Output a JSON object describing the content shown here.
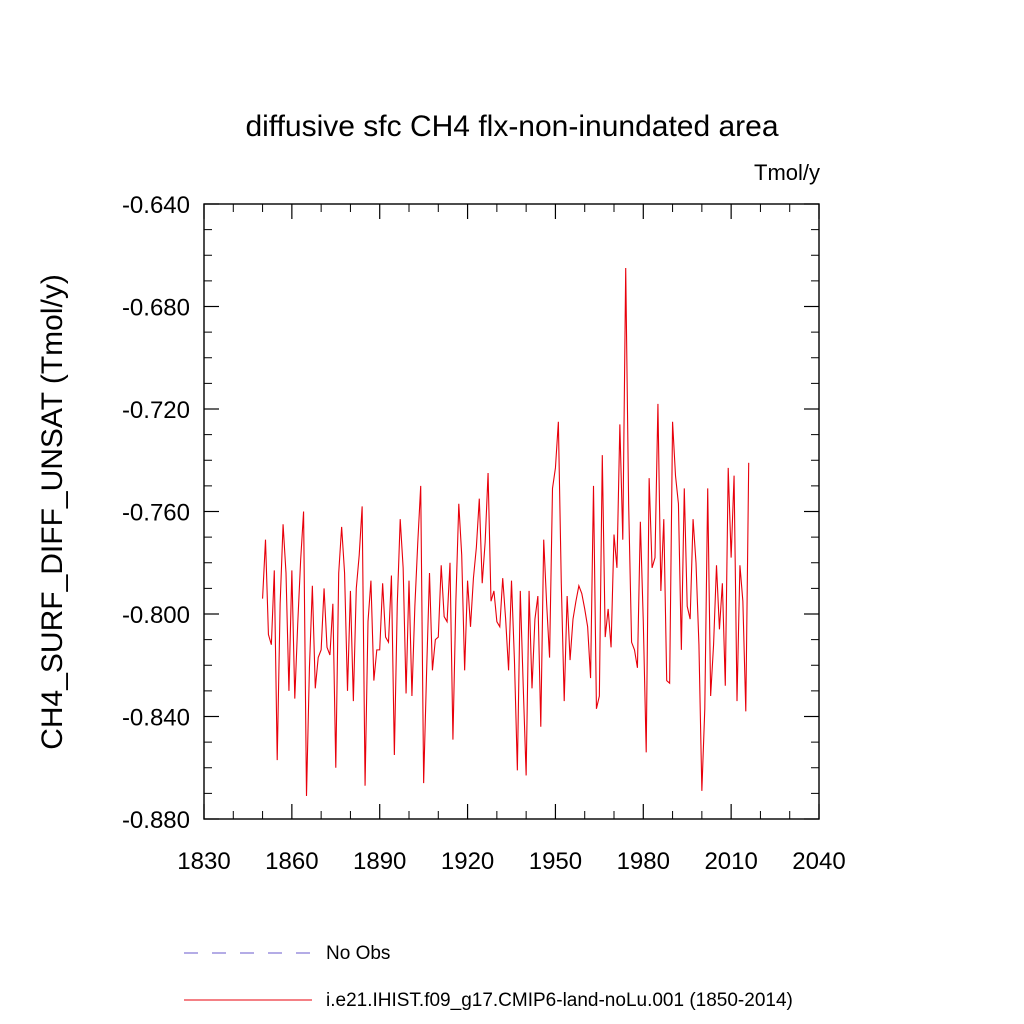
{
  "chart_data": {
    "type": "line",
    "title": "diffusive sfc CH4 flx-non-inundated area",
    "units_label": "Tmol/y",
    "ylabel": "CH4_SURF_DIFF_UNSAT  (Tmol/y)",
    "xlabel": "",
    "xlim": [
      1830,
      2040
    ],
    "ylim": [
      -0.88,
      -0.64
    ],
    "x_ticks": [
      1830,
      1860,
      1890,
      1920,
      1950,
      1980,
      2010,
      2040
    ],
    "y_ticks": [
      -0.88,
      -0.84,
      -0.8,
      -0.76,
      -0.72,
      -0.68,
      -0.64
    ],
    "y_tick_labels": [
      "-0.880",
      "-0.840",
      "-0.800",
      "-0.760",
      "-0.720",
      "-0.680",
      "-0.640"
    ],
    "grid": false,
    "legend_position": "bottom",
    "colors": {
      "series": "#e8000b",
      "obs": "#6a5acd",
      "axis": "#000000"
    },
    "legend": [
      {
        "label": "No Obs",
        "style": "dashed",
        "color": "#6a5acd"
      },
      {
        "label": "i.e21.IHIST.f09_g17.CMIP6-land-noLu.001 (1850-2014)",
        "style": "solid",
        "color": "#e8000b"
      }
    ],
    "series": [
      {
        "x_start": 1850,
        "x_end": 2014,
        "values": [
          -0.794,
          -0.771,
          -0.808,
          -0.812,
          -0.783,
          -0.857,
          -0.796,
          -0.765,
          -0.784,
          -0.83,
          -0.783,
          -0.833,
          -0.804,
          -0.779,
          -0.76,
          -0.871,
          -0.821,
          -0.789,
          -0.829,
          -0.817,
          -0.814,
          -0.79,
          -0.813,
          -0.816,
          -0.796,
          -0.86,
          -0.784,
          -0.766,
          -0.784,
          -0.83,
          -0.791,
          -0.834,
          -0.79,
          -0.777,
          -0.758,
          -0.867,
          -0.803,
          -0.787,
          -0.826,
          -0.814,
          -0.814,
          -0.788,
          -0.809,
          -0.811,
          -0.785,
          -0.855,
          -0.796,
          -0.763,
          -0.782,
          -0.831,
          -0.787,
          -0.832,
          -0.797,
          -0.772,
          -0.75,
          -0.866,
          -0.823,
          -0.784,
          -0.822,
          -0.81,
          -0.809,
          -0.781,
          -0.801,
          -0.803,
          -0.78,
          -0.849,
          -0.795,
          -0.757,
          -0.777,
          -0.822,
          -0.787,
          -0.805,
          -0.786,
          -0.774,
          -0.755,
          -0.788,
          -0.772,
          -0.745,
          -0.795,
          -0.791,
          -0.803,
          -0.805,
          -0.786,
          -0.802,
          -0.822,
          -0.787,
          -0.818,
          -0.861,
          -0.791,
          -0.828,
          -0.863,
          -0.791,
          -0.829,
          -0.802,
          -0.793,
          -0.844,
          -0.771,
          -0.796,
          -0.817,
          -0.751,
          -0.743,
          -0.725,
          -0.788,
          -0.834,
          -0.793,
          -0.818,
          -0.802,
          -0.795,
          -0.789,
          -0.792,
          -0.798,
          -0.805,
          -0.825,
          -0.75,
          -0.837,
          -0.832,
          -0.738,
          -0.809,
          -0.798,
          -0.813,
          -0.769,
          -0.782,
          -0.726,
          -0.771,
          -0.665,
          -0.757,
          -0.811,
          -0.814,
          -0.821,
          -0.764,
          -0.803,
          -0.854,
          -0.747,
          -0.782,
          -0.778,
          -0.718,
          -0.791,
          -0.763,
          -0.826,
          -0.827,
          -0.725,
          -0.746,
          -0.757,
          -0.814,
          -0.751,
          -0.797,
          -0.802,
          -0.763,
          -0.78,
          -0.812,
          -0.869,
          -0.837,
          -0.751,
          -0.832,
          -0.812,
          -0.781,
          -0.806,
          -0.788,
          -0.828,
          -0.743,
          -0.778,
          -0.746,
          -0.834,
          -0.781,
          -0.795,
          -0.838,
          -0.741
        ]
      }
    ]
  }
}
